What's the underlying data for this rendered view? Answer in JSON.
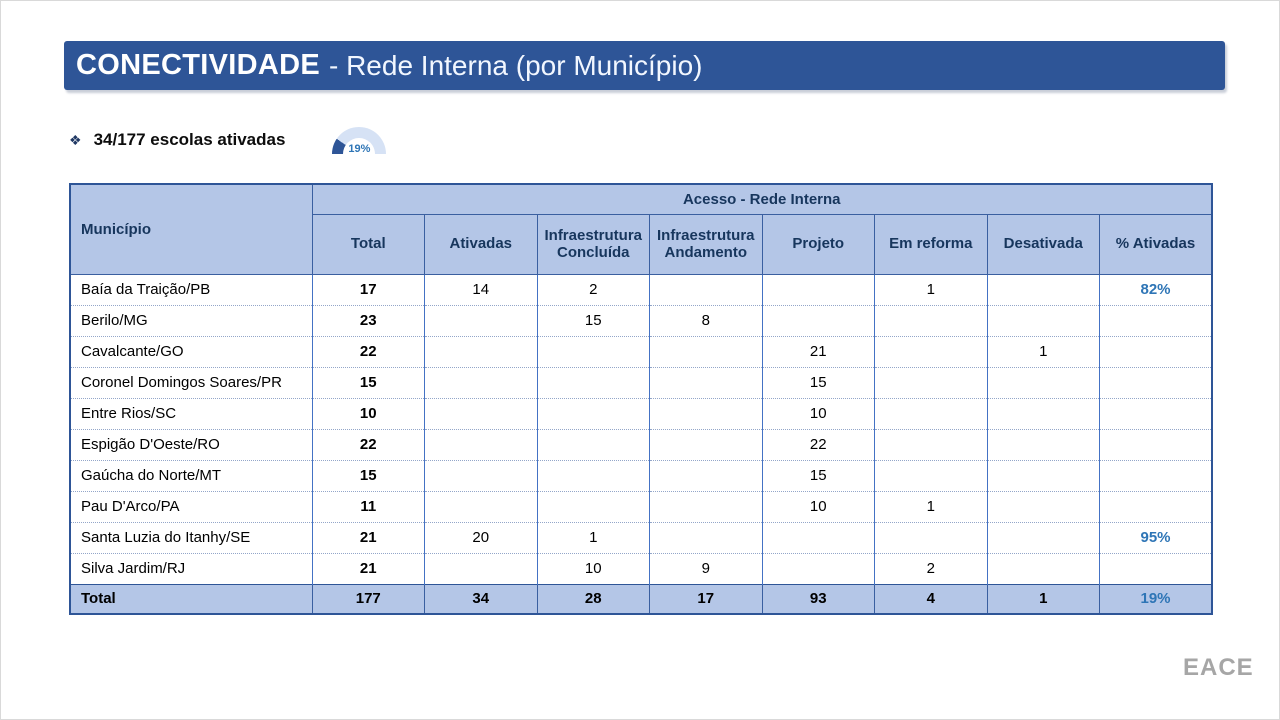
{
  "header": {
    "title_primary": "CONECTIVIDADE",
    "title_secondary": "- Rede Interna (por Município)"
  },
  "summary": {
    "bullet_icon": "❖",
    "text": "34/177 escolas ativadas",
    "gauge_value": "19%"
  },
  "table": {
    "corner_header": "Município",
    "group_header": "Acesso - Rede Interna",
    "columns": [
      "Total",
      "Ativadas",
      "Infraestrutura Concluída",
      "Infraestrutura Andamento",
      "Projeto",
      "Em reforma",
      "Desativada",
      "% Ativadas"
    ],
    "rows": [
      {
        "name": "Baía da Traição/PB",
        "values": [
          "17",
          "14",
          "2",
          "",
          "",
          "1",
          "",
          "82%"
        ]
      },
      {
        "name": "Berilo/MG",
        "values": [
          "23",
          "",
          "15",
          "8",
          "",
          "",
          "",
          ""
        ]
      },
      {
        "name": "Cavalcante/GO",
        "values": [
          "22",
          "",
          "",
          "",
          "21",
          "",
          "1",
          ""
        ]
      },
      {
        "name": "Coronel Domingos Soares/PR",
        "values": [
          "15",
          "",
          "",
          "",
          "15",
          "",
          "",
          ""
        ]
      },
      {
        "name": "Entre Rios/SC",
        "values": [
          "10",
          "",
          "",
          "",
          "10",
          "",
          "",
          ""
        ]
      },
      {
        "name": "Espigão D'Oeste/RO",
        "values": [
          "22",
          "",
          "",
          "",
          "22",
          "",
          "",
          ""
        ]
      },
      {
        "name": "Gaúcha do Norte/MT",
        "values": [
          "15",
          "",
          "",
          "",
          "15",
          "",
          "",
          ""
        ]
      },
      {
        "name": "Pau D'Arco/PA",
        "values": [
          "11",
          "",
          "",
          "",
          "10",
          "1",
          "",
          ""
        ]
      },
      {
        "name": "Santa Luzia do Itanhy/SE",
        "values": [
          "21",
          "20",
          "1",
          "",
          "",
          "",
          "",
          "95%"
        ]
      },
      {
        "name": "Silva Jardim/RJ",
        "values": [
          "21",
          "",
          "10",
          "9",
          "",
          "2",
          "",
          ""
        ]
      }
    ],
    "total_row": {
      "name": "Total",
      "values": [
        "177",
        "34",
        "28",
        "17",
        "93",
        "4",
        "1",
        "19%"
      ]
    }
  },
  "footer": {
    "logo": "EACE"
  },
  "colors": {
    "banner_blue": "#2E5597",
    "header_fill": "#B4C6E7",
    "percent_blue": "#2E75B6",
    "border_blue": "#4472C4",
    "logo_gray": "#A6A6A6"
  }
}
